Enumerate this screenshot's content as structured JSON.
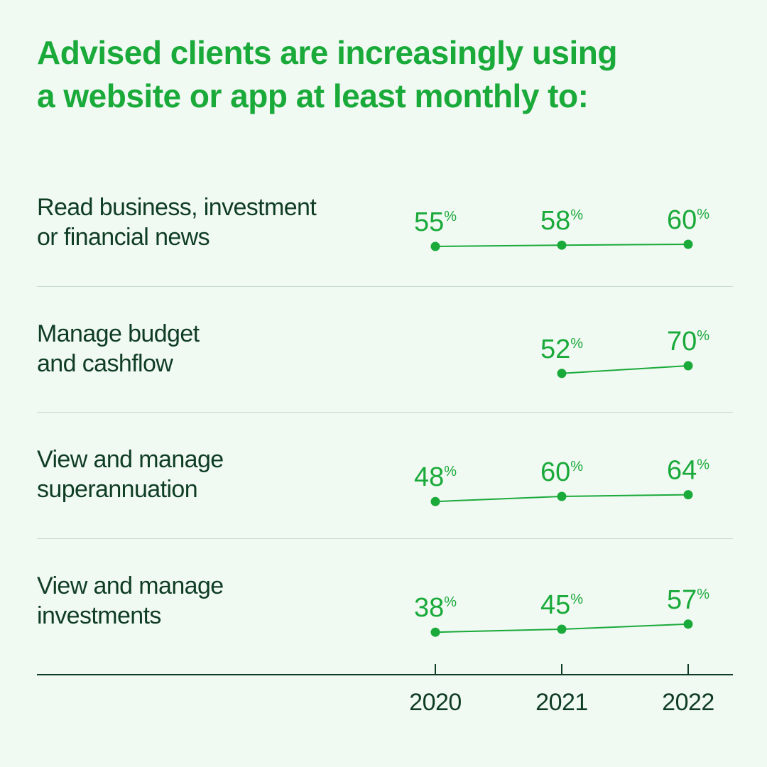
{
  "title_lines": [
    "Advised clients are increasingly using",
    "a website or app at least monthly to:"
  ],
  "chart_data": {
    "type": "line",
    "title": "Advised clients are increasingly using a website or app at least monthly to:",
    "x": [
      "2020",
      "2021",
      "2022"
    ],
    "unit": "%",
    "grid": false,
    "series": [
      {
        "label_lines": [
          "Read business, investment",
          "or financial news"
        ],
        "values": [
          55,
          58,
          60
        ]
      },
      {
        "label_lines": [
          "Manage budget",
          "and cashflow"
        ],
        "values": [
          null,
          52,
          70
        ]
      },
      {
        "label_lines": [
          "View and manage",
          "superannuation"
        ],
        "values": [
          48,
          60,
          64
        ]
      },
      {
        "label_lines": [
          "View and manage",
          "investments"
        ],
        "values": [
          38,
          45,
          57
        ]
      }
    ],
    "colors": {
      "line": "#1aaa3a",
      "text": "#0f3d24"
    }
  }
}
